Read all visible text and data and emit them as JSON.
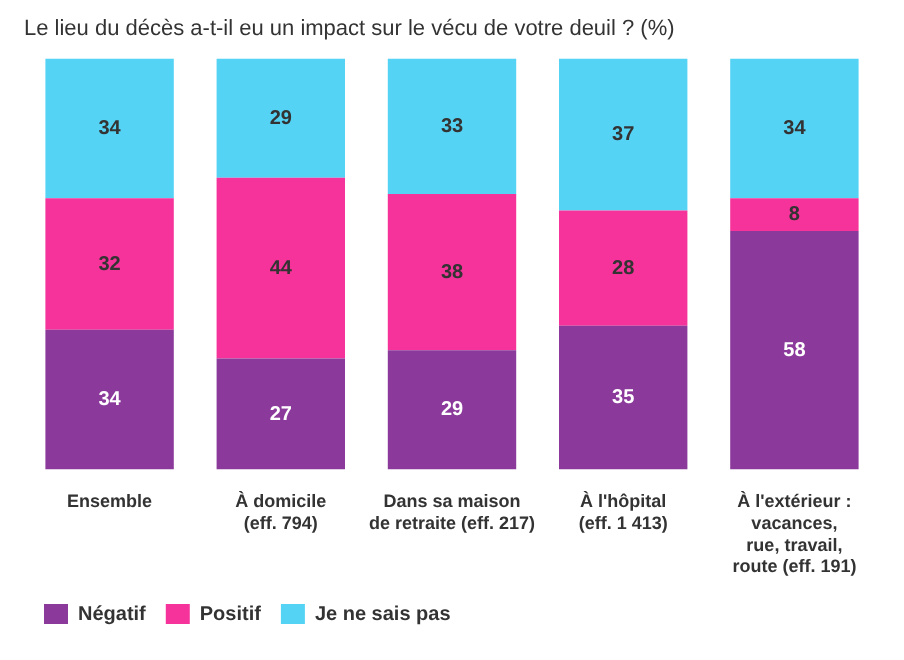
{
  "chart_data": {
    "type": "bar",
    "title": "Le lieu du décès a-t-il eu un impact sur le vécu de votre deuil ? (%)",
    "categories": [
      "Ensemble",
      "À domicile\n(eff. 794)",
      "Dans sa maison\nde retraite (eff. 217)",
      "À l'hôpital\n(eff. 1 413)",
      "À l'extérieur :\nvacances,\nrue, travail,\nroute (eff. 191)"
    ],
    "series": [
      {
        "name": "Négatif",
        "color": "#8b3a9b",
        "values": [
          34,
          27,
          29,
          35,
          58
        ]
      },
      {
        "name": "Positif",
        "color": "#f5339a",
        "values": [
          32,
          44,
          38,
          28,
          8
        ]
      },
      {
        "name": "Je ne sais pas",
        "color": "#55d3f5",
        "values": [
          34,
          29,
          33,
          37,
          34
        ]
      }
    ],
    "stacked": true,
    "data_labels": true,
    "legend": "bottom left",
    "grid": false,
    "tick_labels": "x"
  }
}
